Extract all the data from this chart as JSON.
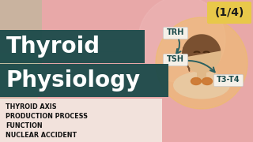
{
  "title_line1": "Thyroid",
  "title_line2": "Physiology",
  "title_bg_color": "#1b4a4a",
  "title_text_color": "#ffffff",
  "badge_text": "(1/4)",
  "badge_bg_color": "#e8c84a",
  "badge_text_color": "#1a1a1a",
  "bg_color": "#e8a8a8",
  "bullet_items": [
    "THYROID AXIS",
    "PRODUCTION PROCESS",
    "FUNCTION",
    "NUCLEAR ACCIDENT"
  ],
  "bullet_bg": "#f5f0e8",
  "bullet_text_color": "#111111",
  "trh_label": "TRH",
  "tsh_label": "TSH",
  "t3t4_label": "T3-T4",
  "label_bg": "#f5f0e8",
  "label_text_color": "#1b4a4a",
  "circle_color": "#f0c060",
  "arrow_color": "#2a6060",
  "face_color": "#e0b888",
  "hair_color": "#7a5030",
  "thyroid_color": "#cc7730",
  "shoulder_color": "#e8c8a0",
  "bg_left_color": "#c8e0c0",
  "bg_mid_color": "#f5d0d0"
}
